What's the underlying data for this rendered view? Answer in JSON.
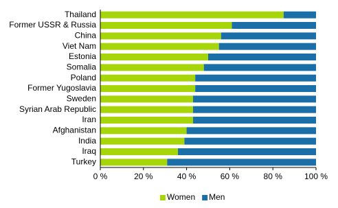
{
  "chart_data": {
    "type": "stacked-barh",
    "categories": [
      "Thailand",
      "Former USSR & Russia",
      "China",
      "Viet Nam",
      "Estonia",
      "Somalia",
      "Poland",
      "Former Yugoslavia",
      "Sweden",
      "Syrian Arab Republic",
      "Iran",
      "Afghanistan",
      "India",
      "Iraq",
      "Turkey"
    ],
    "series": [
      {
        "name": "Women",
        "color": "#a6d609",
        "values": [
          85,
          61,
          56,
          55,
          50,
          48,
          44,
          44,
          43,
          43,
          43,
          40,
          39,
          36,
          31
        ]
      },
      {
        "name": "Men",
        "color": "#1a6fa8",
        "values": [
          15,
          39,
          44,
          45,
          50,
          52,
          56,
          56,
          57,
          57,
          57,
          60,
          61,
          64,
          69
        ]
      }
    ],
    "xlim": [
      0,
      100
    ],
    "xticks": [
      {
        "value": 0,
        "label": "0 %"
      },
      {
        "value": 20,
        "label": "20 %"
      },
      {
        "value": 40,
        "label": "40 %"
      },
      {
        "value": 60,
        "label": "60 %"
      },
      {
        "value": 80,
        "label": "80 %"
      },
      {
        "value": 100,
        "label": "100 %"
      }
    ],
    "legend": "bottom"
  }
}
